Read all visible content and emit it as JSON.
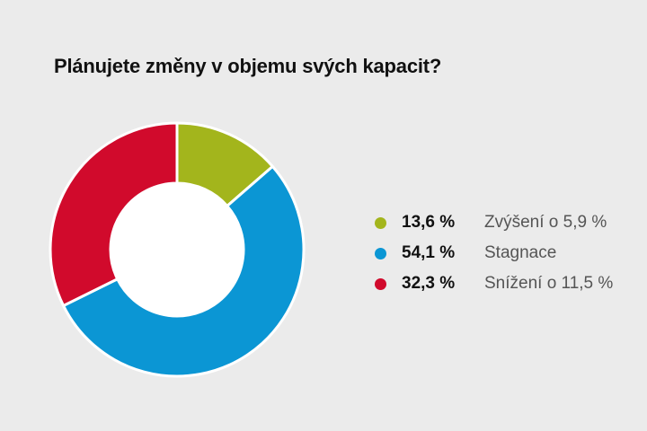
{
  "title": "Plánujete změny v objemu svých kapacit?",
  "chart_data": {
    "type": "pie",
    "donut": true,
    "title": "Plánujete změny v objemu svých kapacit?",
    "slices": [
      {
        "value": 13.6,
        "value_label": "13,6 %",
        "label": "Zvýšení o 5,9 %",
        "color": "#a3b51c"
      },
      {
        "value": 54.1,
        "value_label": "54,1 %",
        "label": "Stagnace",
        "color": "#0b96d4"
      },
      {
        "value": 32.3,
        "value_label": "32,3 %",
        "label": "Snížení o 11,5 %",
        "color": "#d10a2c"
      }
    ],
    "legend_position": "right"
  }
}
